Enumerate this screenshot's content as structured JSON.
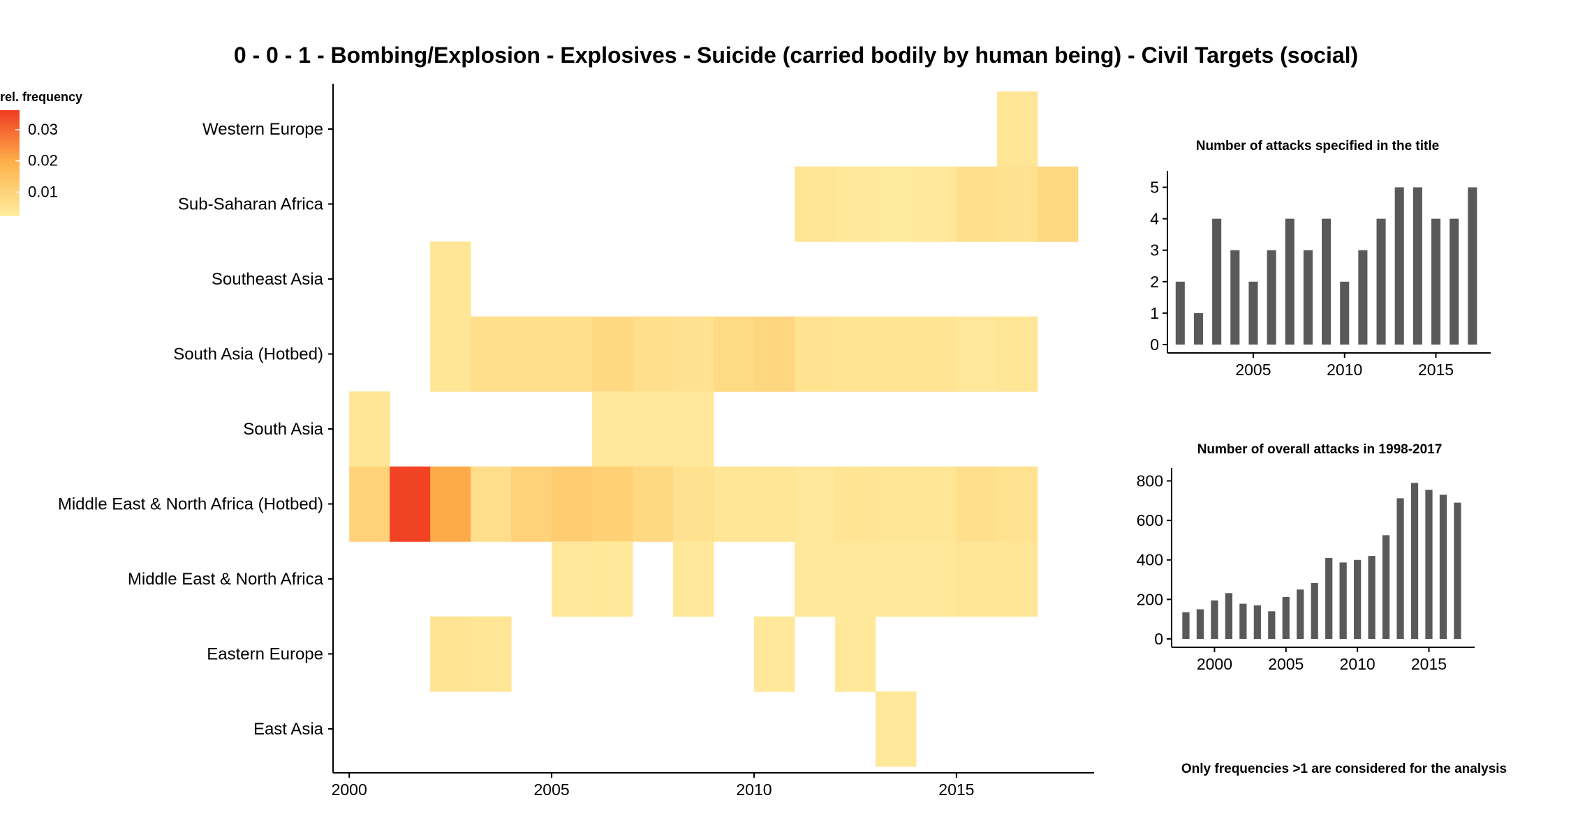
{
  "title": "0 - 0 - 1 - Bombing/Explosion - Explosives - Suicide (carried bodily by human being) - Civil Targets (social)",
  "footnote": "Only frequencies >1 are considered for the analysis",
  "colors": {
    "scale_low": "#FFEDA0",
    "scale_mid": "#FEB24C",
    "scale_high": "#F03B20",
    "bar": "#595959",
    "axis": "#000000"
  },
  "chart_data": [
    {
      "type": "heatmap",
      "legend_title": "rel. frequency",
      "legend_position": "top-left",
      "legend_ticks": [
        0.01,
        0.02,
        0.03
      ],
      "value_range": [
        0,
        0.034
      ],
      "x_ticks": [
        2000,
        2005,
        2010,
        2015
      ],
      "xlim": [
        1999.6,
        2018.4
      ],
      "rows": [
        "Western Europe",
        "Sub-Saharan Africa",
        "Southeast Asia",
        "South Asia (Hotbed)",
        "South Asia",
        "Middle East & North Africa (Hotbed)",
        "Middle East & North Africa",
        "Eastern Europe",
        "East Asia"
      ],
      "cells": [
        {
          "region": "Western Europe",
          "year": 2017,
          "value": 0.002
        },
        {
          "region": "Sub-Saharan Africa",
          "year": 2012,
          "value": 0.002
        },
        {
          "region": "Sub-Saharan Africa",
          "year": 2013,
          "value": 0.0015
        },
        {
          "region": "Sub-Saharan Africa",
          "year": 2014,
          "value": 0.001
        },
        {
          "region": "Sub-Saharan Africa",
          "year": 2015,
          "value": 0.0015
        },
        {
          "region": "Sub-Saharan Africa",
          "year": 2016,
          "value": 0.004
        },
        {
          "region": "Sub-Saharan Africa",
          "year": 2017,
          "value": 0.0035
        },
        {
          "region": "Sub-Saharan Africa",
          "year": 2018,
          "value": 0.006
        },
        {
          "region": "Southeast Asia",
          "year": 2003,
          "value": 0.002
        },
        {
          "region": "South Asia (Hotbed)",
          "year": 2003,
          "value": 0.002
        },
        {
          "region": "South Asia (Hotbed)",
          "year": 2004,
          "value": 0.004
        },
        {
          "region": "South Asia (Hotbed)",
          "year": 2005,
          "value": 0.004
        },
        {
          "region": "South Asia (Hotbed)",
          "year": 2006,
          "value": 0.004
        },
        {
          "region": "South Asia (Hotbed)",
          "year": 2007,
          "value": 0.006
        },
        {
          "region": "South Asia (Hotbed)",
          "year": 2008,
          "value": 0.004
        },
        {
          "region": "South Asia (Hotbed)",
          "year": 2009,
          "value": 0.0035
        },
        {
          "region": "South Asia (Hotbed)",
          "year": 2010,
          "value": 0.0055
        },
        {
          "region": "South Asia (Hotbed)",
          "year": 2011,
          "value": 0.0065
        },
        {
          "region": "South Asia (Hotbed)",
          "year": 2012,
          "value": 0.003
        },
        {
          "region": "South Asia (Hotbed)",
          "year": 2013,
          "value": 0.0025
        },
        {
          "region": "South Asia (Hotbed)",
          "year": 2014,
          "value": 0.0025
        },
        {
          "region": "South Asia (Hotbed)",
          "year": 2015,
          "value": 0.0025
        },
        {
          "region": "South Asia (Hotbed)",
          "year": 2016,
          "value": 0.0015
        },
        {
          "region": "South Asia (Hotbed)",
          "year": 2017,
          "value": 0.002
        },
        {
          "region": "South Asia",
          "year": 2001,
          "value": 0.002
        },
        {
          "region": "South Asia",
          "year": 2007,
          "value": 0.0015
        },
        {
          "region": "South Asia",
          "year": 2008,
          "value": 0.0015
        },
        {
          "region": "South Asia",
          "year": 2009,
          "value": 0.0015
        },
        {
          "region": "Middle East & North Africa (Hotbed)",
          "year": 2001,
          "value": 0.008
        },
        {
          "region": "Middle East & North Africa (Hotbed)",
          "year": 2002,
          "value": 0.033
        },
        {
          "region": "Middle East & North Africa (Hotbed)",
          "year": 2003,
          "value": 0.018
        },
        {
          "region": "Middle East & North Africa (Hotbed)",
          "year": 2004,
          "value": 0.0045
        },
        {
          "region": "Middle East & North Africa (Hotbed)",
          "year": 2005,
          "value": 0.008
        },
        {
          "region": "Middle East & North Africa (Hotbed)",
          "year": 2006,
          "value": 0.0095
        },
        {
          "region": "Middle East & North Africa (Hotbed)",
          "year": 2007,
          "value": 0.0085
        },
        {
          "region": "Middle East & North Africa (Hotbed)",
          "year": 2008,
          "value": 0.006
        },
        {
          "region": "Middle East & North Africa (Hotbed)",
          "year": 2009,
          "value": 0.0035
        },
        {
          "region": "Middle East & North Africa (Hotbed)",
          "year": 2010,
          "value": 0.002
        },
        {
          "region": "Middle East & North Africa (Hotbed)",
          "year": 2011,
          "value": 0.002
        },
        {
          "region": "Middle East & North Africa (Hotbed)",
          "year": 2012,
          "value": 0.0015
        },
        {
          "region": "Middle East & North Africa (Hotbed)",
          "year": 2013,
          "value": 0.0025
        },
        {
          "region": "Middle East & North Africa (Hotbed)",
          "year": 2014,
          "value": 0.002
        },
        {
          "region": "Middle East & North Africa (Hotbed)",
          "year": 2015,
          "value": 0.002
        },
        {
          "region": "Middle East & North Africa (Hotbed)",
          "year": 2016,
          "value": 0.004
        },
        {
          "region": "Middle East & North Africa (Hotbed)",
          "year": 2017,
          "value": 0.003
        },
        {
          "region": "Middle East & North Africa",
          "year": 2006,
          "value": 0.0015
        },
        {
          "region": "Middle East & North Africa",
          "year": 2007,
          "value": 0.0015
        },
        {
          "region": "Middle East & North Africa",
          "year": 2009,
          "value": 0.0015
        },
        {
          "region": "Middle East & North Africa",
          "year": 2012,
          "value": 0.0015
        },
        {
          "region": "Middle East & North Africa",
          "year": 2013,
          "value": 0.0015
        },
        {
          "region": "Middle East & North Africa",
          "year": 2014,
          "value": 0.0015
        },
        {
          "region": "Middle East & North Africa",
          "year": 2015,
          "value": 0.0015
        },
        {
          "region": "Middle East & North Africa",
          "year": 2016,
          "value": 0.002
        },
        {
          "region": "Middle East & North Africa",
          "year": 2017,
          "value": 0.002
        },
        {
          "region": "Eastern Europe",
          "year": 2003,
          "value": 0.0025
        },
        {
          "region": "Eastern Europe",
          "year": 2004,
          "value": 0.002
        },
        {
          "region": "Eastern Europe",
          "year": 2011,
          "value": 0.0015
        },
        {
          "region": "Eastern Europe",
          "year": 2013,
          "value": 0.0015
        },
        {
          "region": "East Asia",
          "year": 2014,
          "value": 0.0015
        }
      ]
    },
    {
      "type": "bar",
      "title": "Number of attacks specified in the title",
      "x": [
        2001,
        2002,
        2003,
        2004,
        2005,
        2006,
        2007,
        2008,
        2009,
        2010,
        2011,
        2012,
        2013,
        2014,
        2015,
        2016,
        2017
      ],
      "values": [
        2,
        1,
        4,
        3,
        2,
        3,
        4,
        3,
        4,
        2,
        3,
        4,
        5,
        5,
        4,
        4,
        5
      ],
      "x_ticks": [
        2005,
        2010,
        2015
      ],
      "y_ticks": [
        0,
        1,
        2,
        3,
        4,
        5
      ],
      "xlim": [
        2000.3,
        2018.0
      ],
      "ylim": [
        0,
        5.3
      ]
    },
    {
      "type": "bar",
      "title": "Number of overall attacks in 1998-2017",
      "x": [
        1998,
        1999,
        2000,
        2001,
        2002,
        2003,
        2004,
        2005,
        2006,
        2007,
        2008,
        2009,
        2010,
        2011,
        2012,
        2013,
        2014,
        2015,
        2016,
        2017
      ],
      "values": [
        135,
        150,
        195,
        232,
        178,
        170,
        140,
        212,
        250,
        283,
        410,
        387,
        400,
        420,
        525,
        712,
        790,
        755,
        730,
        690
      ],
      "x_ticks": [
        2000,
        2005,
        2010,
        2015
      ],
      "y_ticks": [
        0,
        200,
        400,
        600,
        800
      ],
      "xlim": [
        1997.0,
        2018.2
      ],
      "ylim": [
        0,
        830
      ]
    }
  ]
}
